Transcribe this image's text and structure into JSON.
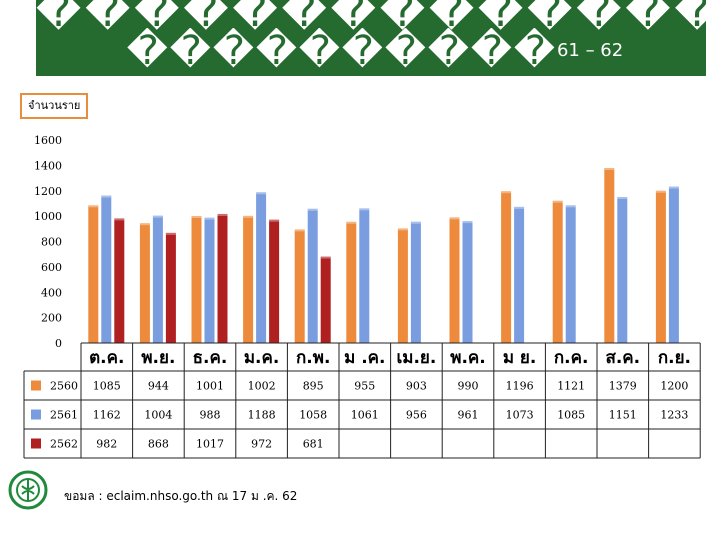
{
  "title": {
    "line1": "��������������������",
    "line2": "����������",
    "line2_years": "61 – 62"
  },
  "y_axis_box_label": "จำนวนราย",
  "footer": {
    "source_text": "ขอมล : eclaim.nhso.go.th ณ 17 ม .ค. 62"
  },
  "colors": {
    "series_2560": "#ee8a3b",
    "series_2561": "#7a9de0",
    "series_2562": "#b02020",
    "title_bg": "#256b2f"
  },
  "chart_data": {
    "type": "bar",
    "ylabel": "จำนวนราย",
    "ylim": [
      0,
      1600
    ],
    "yticks": [
      0,
      200,
      400,
      600,
      800,
      1000,
      1200,
      1400,
      1600
    ],
    "grid": false,
    "legend": "in data table",
    "categories": [
      "ต.ค.",
      "พ.ย.",
      "ธ.ค.",
      "ม.ค.",
      "ก.พ.",
      "ม .ค.",
      "เม.ย.",
      "พ.ค.",
      "ม ย.",
      "ก.ค.",
      "ส.ค.",
      "ก.ย."
    ],
    "series": [
      {
        "name": "2560",
        "values": [
          1085,
          944,
          1001,
          1002,
          895,
          955,
          903,
          990,
          1196,
          1121,
          1379,
          1200
        ]
      },
      {
        "name": "2561",
        "values": [
          1162,
          1004,
          988,
          1188,
          1058,
          1061,
          956,
          961,
          1073,
          1085,
          1151,
          1233
        ]
      },
      {
        "name": "2562",
        "values": [
          982,
          868,
          1017,
          972,
          681,
          null,
          null,
          null,
          null,
          null,
          null,
          null
        ]
      }
    ]
  }
}
